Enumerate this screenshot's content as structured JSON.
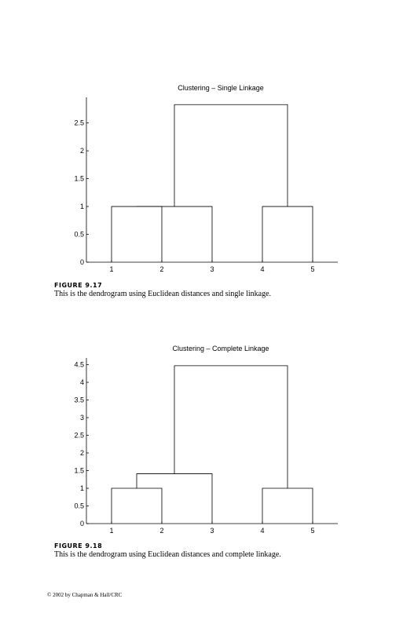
{
  "chart_data": [
    {
      "type": "dendrogram",
      "title": "Clustering – Single Linkage",
      "xticks": [
        1,
        2,
        3,
        4,
        5
      ],
      "xlim": [
        0.5,
        5.5
      ],
      "ylim": [
        0,
        2.96
      ],
      "yticks": [
        0,
        0.5,
        1,
        1.5,
        2,
        2.5
      ],
      "color": "#000000",
      "links": [
        {
          "x": [
            1,
            2
          ],
          "bottoms": [
            0,
            0
          ],
          "height": 1
        },
        {
          "x": [
            1.5,
            3
          ],
          "bottoms": [
            1,
            0
          ],
          "height": 1
        },
        {
          "x": [
            4,
            5
          ],
          "bottoms": [
            0,
            0
          ],
          "height": 1
        },
        {
          "x": [
            2.25,
            4.5
          ],
          "bottoms": [
            1,
            1
          ],
          "height": 2.83
        }
      ]
    },
    {
      "type": "dendrogram",
      "title": "Clustering – Complete Linkage",
      "xticks": [
        1,
        2,
        3,
        4,
        5
      ],
      "xlim": [
        0.5,
        5.5
      ],
      "ylim": [
        0,
        4.69
      ],
      "yticks": [
        0,
        0.5,
        1,
        1.5,
        2,
        2.5,
        3,
        3.5,
        4,
        4.5
      ],
      "color": "#000000",
      "links": [
        {
          "x": [
            1,
            2
          ],
          "bottoms": [
            0,
            0
          ],
          "height": 1
        },
        {
          "x": [
            1.5,
            3
          ],
          "bottoms": [
            1,
            0
          ],
          "height": 1.41
        },
        {
          "x": [
            4,
            5
          ],
          "bottoms": [
            0,
            0
          ],
          "height": 1
        },
        {
          "x": [
            2.25,
            4.5
          ],
          "bottoms": [
            1.41,
            1
          ],
          "height": 4.47
        }
      ]
    }
  ],
  "figures": [
    {
      "label": "FIGURE 9.17",
      "caption": "This is the dendrogram using Euclidean distances and single linkage."
    },
    {
      "label": "FIGURE 9.18",
      "caption": "This is the dendrogram using Euclidean distances and complete linkage."
    }
  ],
  "footer": "© 2002 by Chapman & Hall/CRC"
}
